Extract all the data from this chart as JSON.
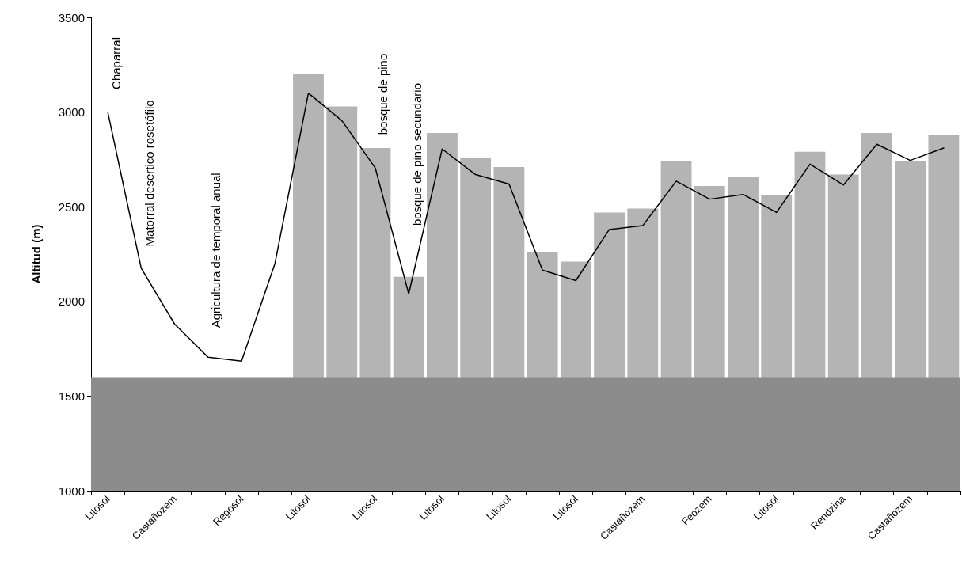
{
  "chart_data": {
    "type": "bar",
    "ylabel": "Altitud (m)",
    "categories": [
      "Litosol",
      null,
      "Castañozem",
      null,
      "Regosol",
      null,
      "Litosol",
      null,
      "Litosol",
      null,
      "Litosol",
      null,
      "Litosol",
      null,
      "Litosol",
      null,
      "Castañozem",
      null,
      "Feozem",
      null,
      "Litosol",
      null,
      "Rendzina",
      null,
      "Castañozem",
      null
    ],
    "series": [
      {
        "color": "#b4b4b4",
        "values": [
          null,
          null,
          null,
          null,
          null,
          null,
          3200,
          3030,
          2810,
          2130,
          2890,
          2760,
          2710,
          2260,
          2210,
          2470,
          2490,
          2740,
          2610,
          2655,
          2560,
          2790,
          2670,
          2890,
          2740,
          2880
        ]
      },
      {
        "type": "line",
        "color": "#000000",
        "values": [
          3000,
          2175,
          1880,
          1705,
          1685,
          2200,
          3100,
          2955,
          2705,
          2040,
          2805,
          2670,
          2620,
          2165,
          2110,
          2380,
          2400,
          2635,
          2540,
          2565,
          2470,
          2725,
          2615,
          2830,
          2745,
          2810
        ]
      }
    ],
    "bands": [
      {
        "axis": "y",
        "from": 1000,
        "to": 1600,
        "color": "#8c8c8c"
      }
    ],
    "marker": "none",
    "line_style": "solid",
    "grid": false,
    "ylim": [
      1000,
      3500
    ],
    "yticks": [
      1000,
      1500,
      2000,
      2500,
      3000,
      3500
    ],
    "annotations": [
      "Chaparral",
      "Matorral desertico rosetófilo",
      "Agricultura de temporal anual",
      "bosque de pino",
      "bosque de pino secundario"
    ]
  }
}
